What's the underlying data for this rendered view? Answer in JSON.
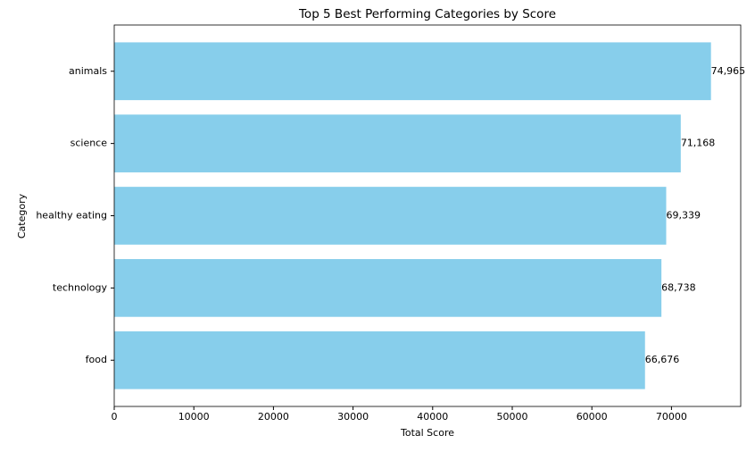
{
  "chart_data": {
    "type": "barh",
    "title": "Top 5 Best Performing Categories by Score",
    "x_label": "Total Score",
    "y_label": "Category",
    "categories": [
      "animals",
      "science",
      "healthy eating",
      "technology",
      "food"
    ],
    "values": [
      74965,
      71168,
      69339,
      68738,
      66676
    ],
    "value_labels": [
      "74,965",
      "71,168",
      "69,339",
      "68,738",
      "66,676"
    ],
    "color": "#87ceeb",
    "xlim": [
      0,
      78700
    ],
    "xticks": [
      0,
      10000,
      20000,
      30000,
      40000,
      50000,
      60000,
      70000
    ]
  }
}
